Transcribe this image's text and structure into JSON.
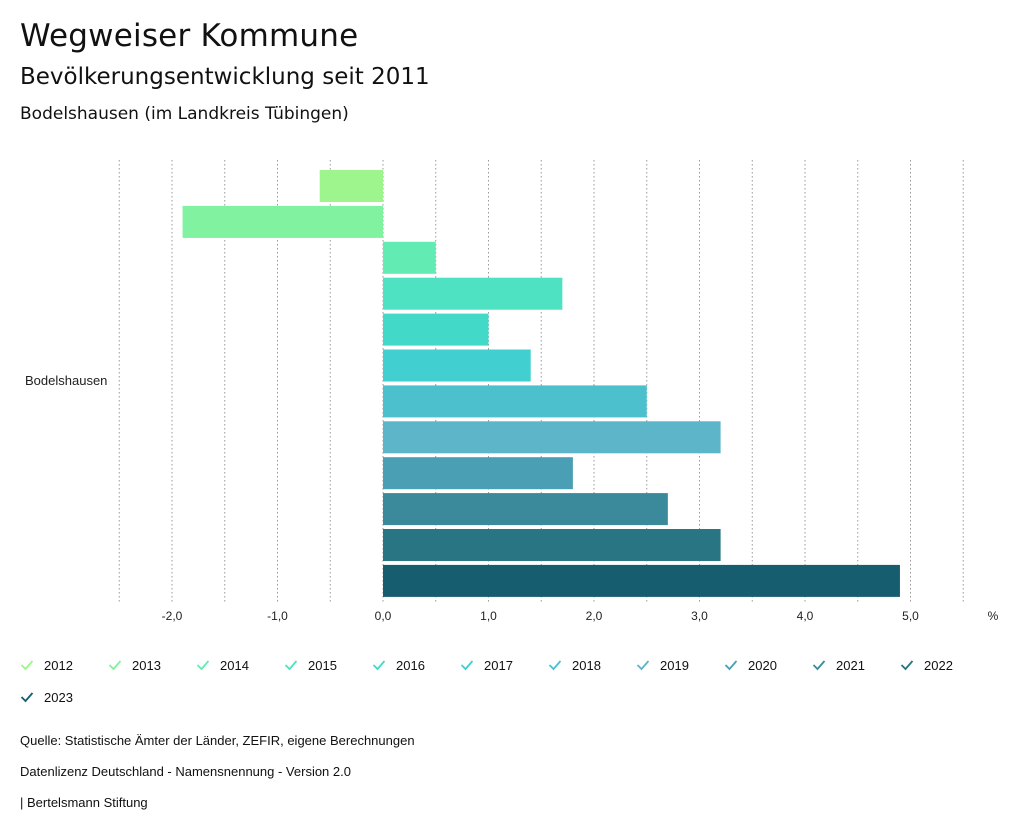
{
  "header": {
    "title": "Wegweiser Kommune",
    "subtitle": "Bevölkerungsentwicklung seit 2011",
    "region": "Bodelshausen (im Landkreis Tübingen)"
  },
  "chart_data": {
    "type": "bar",
    "orientation": "horizontal",
    "category": "Bodelshausen",
    "xunit": "%",
    "xlim": [
      -2.5,
      5.5
    ],
    "ticks": [
      {
        "value": -2,
        "label": "-2,0"
      },
      {
        "value": -1,
        "label": "-1,0"
      },
      {
        "value": 0,
        "label": "0,0"
      },
      {
        "value": 1,
        "label": "1,0"
      },
      {
        "value": 2,
        "label": "2,0"
      },
      {
        "value": 3,
        "label": "3,0"
      },
      {
        "value": 4,
        "label": "4,0"
      },
      {
        "value": 5,
        "label": "5,0"
      }
    ],
    "series": [
      {
        "name": "2012",
        "value": -0.6,
        "color": "#9ef58e"
      },
      {
        "name": "2013",
        "value": -1.9,
        "color": "#80f2a0"
      },
      {
        "name": "2014",
        "value": 0.5,
        "color": "#62ebb2"
      },
      {
        "name": "2015",
        "value": 1.7,
        "color": "#4fe2c2"
      },
      {
        "name": "2016",
        "value": 1.0,
        "color": "#42d9c8"
      },
      {
        "name": "2017",
        "value": 1.4,
        "color": "#42cfcf"
      },
      {
        "name": "2018",
        "value": 2.5,
        "color": "#4dc0cd"
      },
      {
        "name": "2019",
        "value": 3.2,
        "color": "#5db5c9"
      },
      {
        "name": "2020",
        "value": 1.8,
        "color": "#4b9fb4"
      },
      {
        "name": "2021",
        "value": 2.7,
        "color": "#3b8a9c"
      },
      {
        "name": "2022",
        "value": 3.2,
        "color": "#297584"
      },
      {
        "name": "2023",
        "value": 4.9,
        "color": "#165e6f"
      }
    ]
  },
  "footer": {
    "source": "Quelle: Statistische Ämter der Länder, ZEFIR, eigene Berechnungen",
    "license": "Datenlizenz Deutschland - Namensnennung - Version 2.0",
    "publisher": "| Bertelsmann Stiftung"
  }
}
